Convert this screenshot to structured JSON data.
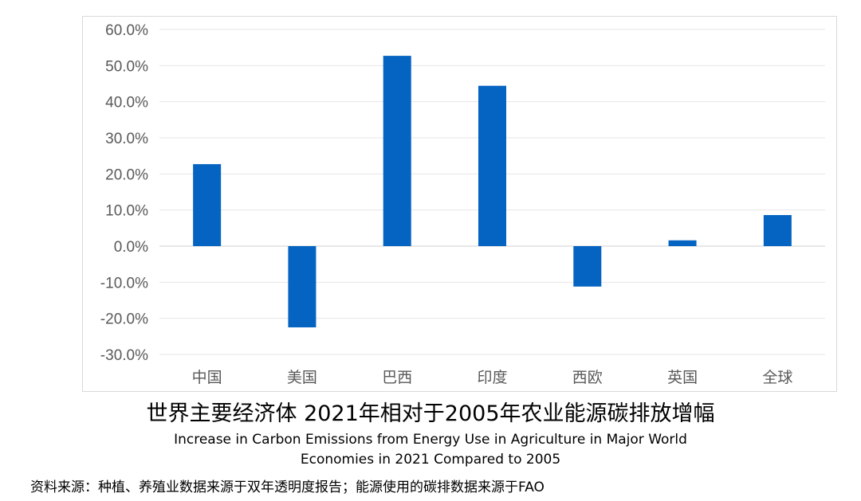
{
  "chart_data": {
    "type": "bar",
    "title": "世界主要经济体 2021年相对于2005年农业能源碳排放增幅",
    "subtitle": "Increase in Carbon Emissions from Energy Use in Agriculture in Major World Economies in 2021 Compared to 2005",
    "categories": [
      "中国",
      "美国",
      "巴西",
      "印度",
      "西欧",
      "英国",
      "全球"
    ],
    "values": [
      22.7,
      -22.5,
      52.7,
      44.4,
      -11.2,
      1.6,
      8.6
    ],
    "ylim": [
      -30,
      60
    ],
    "yticks": [
      60,
      50,
      40,
      30,
      20,
      10,
      0,
      -10,
      -20,
      -30
    ],
    "ytick_labels": [
      "60.0%",
      "50.0%",
      "40.0%",
      "30.0%",
      "20.0%",
      "10.0%",
      "0.0%",
      "-10.0%",
      "-20.0%",
      "-30.0%"
    ],
    "unit": "%",
    "grid": true,
    "bar_color": "#0563C1",
    "grid_color": "#e6e6e6"
  },
  "source_note": "资料来源：种植、养殖业数据来源于双年透明度报告；能源使用的碳排数据来源于FAO"
}
